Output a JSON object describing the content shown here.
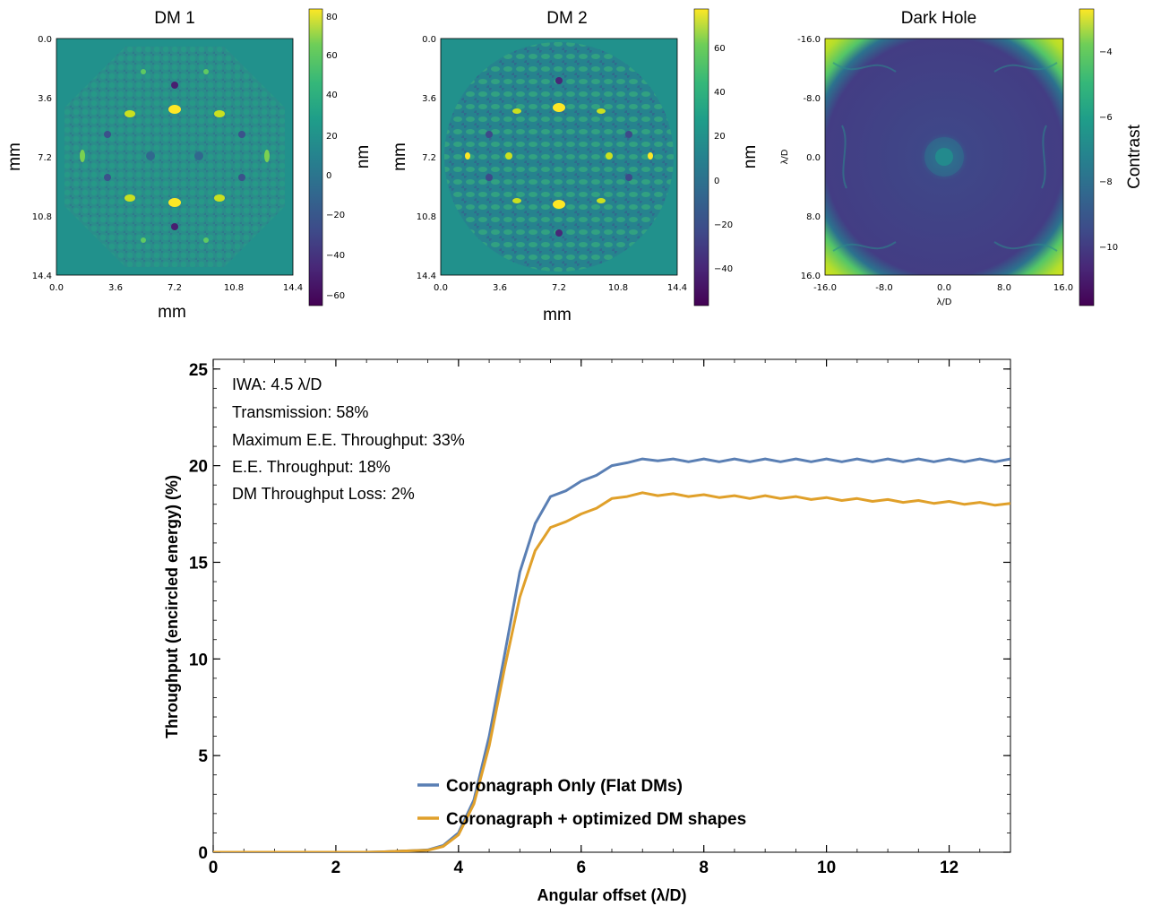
{
  "chart_data": [
    {
      "type": "heatmap",
      "title": "DM 1",
      "xlabel": "mm",
      "ylabel": "mm",
      "xticks": [
        "0.0",
        "3.6",
        "7.2",
        "10.8",
        "14.4"
      ],
      "yticks": [
        "0.0",
        "3.6",
        "7.2",
        "10.8",
        "14.4"
      ],
      "xlim": [
        0,
        14.4
      ],
      "ylim": [
        0,
        14.4
      ],
      "colorbar": {
        "label": "nm",
        "ticks": [
          "80",
          "60",
          "40",
          "20",
          "0",
          "−20",
          "−40",
          "−60"
        ],
        "range": [
          -65,
          83
        ]
      },
      "colormap": "viridis"
    },
    {
      "type": "heatmap",
      "title": "DM 2",
      "xlabel": "mm",
      "ylabel": "mm",
      "xticks": [
        "0.0",
        "3.6",
        "7.2",
        "10.8",
        "14.4"
      ],
      "yticks": [
        "0.0",
        "3.6",
        "7.2",
        "10.8",
        "14.4"
      ],
      "xlim": [
        0,
        14.4
      ],
      "ylim": [
        0,
        14.4
      ],
      "colorbar": {
        "label": "nm",
        "ticks": [
          "60",
          "40",
          "20",
          "0",
          "−20",
          "−40"
        ],
        "range": [
          -56,
          78
        ]
      },
      "colormap": "viridis"
    },
    {
      "type": "heatmap",
      "title": "Dark Hole",
      "xlabel": "λ/D",
      "ylabel": "λ/D",
      "xticks": [
        "-16.0",
        "-8.0",
        "0.0",
        "8.0",
        "16.0"
      ],
      "yticks": [
        "-16.0",
        "-8.0",
        "0.0",
        "8.0",
        "16.0"
      ],
      "xlim": [
        -16,
        16
      ],
      "ylim": [
        -16,
        16
      ],
      "colorbar": {
        "label": "Contrast",
        "ticks": [
          "−4",
          "−6",
          "−8",
          "−10"
        ],
        "range": [
          -11.7,
          -2.5
        ]
      },
      "colormap": "viridis"
    },
    {
      "type": "line",
      "xlabel": "Angular offset (λ/D)",
      "ylabel": "Throughput (encircled energy) (%)",
      "xlim": [
        0,
        13
      ],
      "ylim": [
        0,
        25.5
      ],
      "xticks": [
        0,
        2,
        4,
        6,
        8,
        10,
        12
      ],
      "yticks": [
        0,
        5,
        10,
        15,
        20,
        25
      ],
      "legend_position": "lower-center",
      "annotations": [
        "IWA: 4.5 λ/D",
        "Transmission: 58%",
        "Maximum E.E. Throughput: 33%",
        "E.E. Throughput: 18%",
        "DM Throughput Loss: 2%"
      ],
      "x": [
        0,
        0.25,
        0.5,
        0.75,
        1,
        1.25,
        1.5,
        1.75,
        2,
        2.25,
        2.5,
        2.75,
        3,
        3.25,
        3.5,
        3.75,
        4,
        4.25,
        4.5,
        4.75,
        5,
        5.25,
        5.5,
        5.75,
        6,
        6.25,
        6.5,
        6.75,
        7,
        7.25,
        7.5,
        7.75,
        8,
        8.25,
        8.5,
        8.75,
        9,
        9.25,
        9.5,
        9.75,
        10,
        10.25,
        10.5,
        10.75,
        11,
        11.25,
        11.5,
        11.75,
        12,
        12.25,
        12.5,
        12.75,
        13
      ],
      "series": [
        {
          "name": "Coronagraph Only (Flat DMs)",
          "color": "#5a7fb4",
          "values": [
            0,
            0,
            0,
            0,
            0,
            0,
            0,
            0,
            0,
            0,
            0,
            0.02,
            0.05,
            0.08,
            0.12,
            0.35,
            1.0,
            2.7,
            6.0,
            10.2,
            14.5,
            17.0,
            18.4,
            18.7,
            19.2,
            19.5,
            20.0,
            20.15,
            20.35,
            20.25,
            20.35,
            20.2,
            20.35,
            20.2,
            20.35,
            20.2,
            20.35,
            20.2,
            20.35,
            20.2,
            20.35,
            20.2,
            20.35,
            20.2,
            20.35,
            20.2,
            20.35,
            20.2,
            20.35,
            20.2,
            20.35,
            20.2,
            20.35
          ]
        },
        {
          "name": "Coronagraph + optimized DM shapes",
          "color": "#e0a02a",
          "values": [
            0,
            0,
            0,
            0,
            0,
            0,
            0,
            0,
            0,
            0,
            0,
            0.02,
            0.05,
            0.08,
            0.1,
            0.3,
            0.9,
            2.5,
            5.5,
            9.5,
            13.2,
            15.6,
            16.8,
            17.1,
            17.5,
            17.8,
            18.3,
            18.4,
            18.6,
            18.45,
            18.55,
            18.4,
            18.5,
            18.35,
            18.45,
            18.3,
            18.45,
            18.3,
            18.4,
            18.25,
            18.35,
            18.2,
            18.3,
            18.15,
            18.25,
            18.1,
            18.2,
            18.05,
            18.15,
            18.0,
            18.1,
            17.95,
            18.05
          ]
        }
      ]
    }
  ]
}
